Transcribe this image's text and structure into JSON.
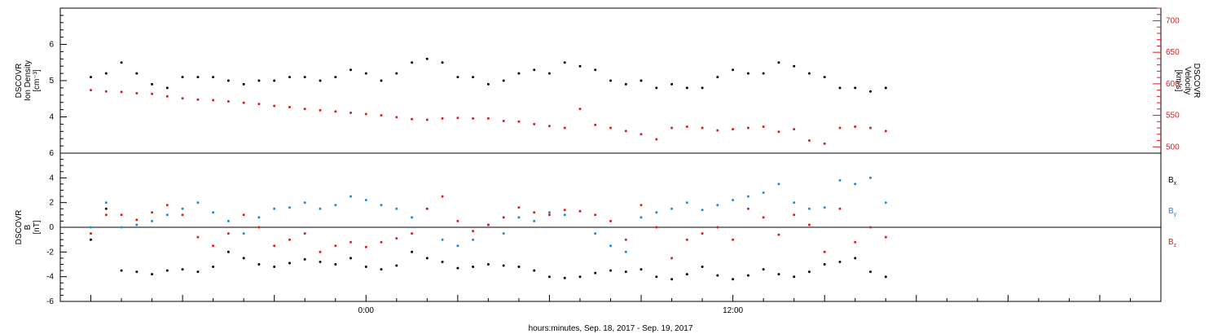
{
  "chart_data": [
    {
      "type": "scatter",
      "panel": "top",
      "ylabel_left": [
        "DSCOVR",
        "Ion Density",
        "[cm⁻³]"
      ],
      "ylabel_right": [
        "DSCOVR",
        "Velocity",
        "[km/s]"
      ],
      "ylim_left": [
        3,
        7
      ],
      "ylim_right": [
        490,
        720
      ],
      "yticks_left": [
        4,
        5,
        6
      ],
      "yticks_right": [
        500,
        550,
        600,
        650,
        700
      ],
      "grid": false,
      "series": [
        {
          "name": "Ion Density",
          "axis": "left",
          "color": "#000000",
          "x": [
            -9.0,
            -8.5,
            -8.0,
            -7.5,
            -7.0,
            -6.5,
            -6.0,
            -5.5,
            -5.0,
            -4.5,
            -4.0,
            -3.5,
            -3.0,
            -2.5,
            -2.0,
            -1.5,
            -1.0,
            -0.5,
            0.0,
            0.5,
            1.0,
            1.5,
            2.0,
            2.5,
            3.0,
            3.5,
            4.0,
            4.5,
            5.0,
            5.5,
            6.0,
            6.5,
            7.0,
            7.5,
            8.0,
            8.5,
            9.0,
            9.5,
            10.0,
            10.5,
            11.0,
            11.5,
            12.0,
            12.5,
            13.0,
            13.5,
            14.0,
            14.5,
            15.0,
            15.5,
            16.0,
            16.5,
            17.0
          ],
          "values": [
            5.1,
            5.2,
            5.5,
            5.2,
            4.9,
            4.8,
            5.1,
            5.1,
            5.1,
            5.0,
            4.9,
            5.0,
            5.0,
            5.1,
            5.1,
            5.0,
            5.1,
            5.3,
            5.2,
            5.0,
            5.2,
            5.5,
            5.6,
            5.5,
            5.1,
            5.1,
            4.9,
            5.0,
            5.2,
            5.3,
            5.2,
            5.5,
            5.4,
            5.3,
            5.0,
            4.9,
            5.0,
            4.8,
            4.9,
            4.8,
            4.8,
            5.1,
            5.3,
            5.2,
            5.2,
            5.5,
            5.4,
            5.2,
            5.1,
            4.8,
            4.8,
            4.7,
            4.8
          ]
        },
        {
          "name": "Velocity",
          "axis": "right",
          "color": "#e31a1c",
          "x": [
            -9.0,
            -8.5,
            -8.0,
            -7.5,
            -7.0,
            -6.5,
            -6.0,
            -5.5,
            -5.0,
            -4.5,
            -4.0,
            -3.5,
            -3.0,
            -2.5,
            -2.0,
            -1.5,
            -1.0,
            -0.5,
            0.0,
            0.5,
            1.0,
            1.5,
            2.0,
            2.5,
            3.0,
            3.5,
            4.0,
            4.5,
            5.0,
            5.5,
            6.0,
            6.5,
            7.0,
            7.5,
            8.0,
            8.5,
            9.0,
            9.5,
            10.0,
            10.5,
            11.0,
            11.5,
            12.0,
            12.5,
            13.0,
            13.5,
            14.0,
            14.5,
            15.0,
            15.5,
            16.0,
            16.5,
            17.0
          ],
          "values": [
            590,
            588,
            587,
            585,
            584,
            580,
            577,
            575,
            574,
            572,
            570,
            568,
            565,
            563,
            560,
            558,
            556,
            554,
            552,
            550,
            547,
            544,
            543,
            545,
            546,
            545,
            545,
            541,
            540,
            536,
            533,
            530,
            560,
            535,
            530,
            525,
            520,
            512,
            530,
            532,
            530,
            526,
            528,
            530,
            532,
            524,
            528,
            510,
            505,
            530,
            532,
            530,
            525
          ]
        }
      ]
    },
    {
      "type": "scatter",
      "panel": "bottom",
      "ylabel_left": [
        "DSCOVR",
        "B",
        "[nT]"
      ],
      "ylim": [
        -6,
        6
      ],
      "yticks": [
        -6,
        -4,
        -2,
        0,
        2,
        4,
        6
      ],
      "xlabel": "hours:minutes, Sep. 18, 2017 - Sep. 19, 2017",
      "xlim": [
        -10,
        26
      ],
      "xtick_labels": [
        {
          "x": 0,
          "label": "0:00"
        },
        {
          "x": 12,
          "label": "12:00"
        }
      ],
      "legend_placement": "right",
      "series": [
        {
          "name": "Bx",
          "label_main": "B",
          "label_sub": "x",
          "color": "#000000",
          "x": [
            -9.0,
            -8.5,
            -8.0,
            -7.5,
            -7.0,
            -6.5,
            -6.0,
            -5.5,
            -5.0,
            -4.5,
            -4.0,
            -3.5,
            -3.0,
            -2.5,
            -2.0,
            -1.5,
            -1.0,
            -0.5,
            0.0,
            0.5,
            1.0,
            1.5,
            2.0,
            2.5,
            3.0,
            3.5,
            4.0,
            4.5,
            5.0,
            5.5,
            6.0,
            6.5,
            7.0,
            7.5,
            8.0,
            8.5,
            9.0,
            9.5,
            10.0,
            10.5,
            11.0,
            11.5,
            12.0,
            12.5,
            13.0,
            13.5,
            14.0,
            14.5,
            15.0,
            15.5,
            16.0,
            16.5,
            17.0
          ],
          "values": [
            -1.0,
            1.5,
            -3.5,
            -3.6,
            -3.8,
            -3.5,
            -3.4,
            -3.6,
            -3.2,
            -2.0,
            -2.5,
            -3.0,
            -3.2,
            -2.9,
            -2.6,
            -2.8,
            -3.0,
            -2.5,
            -3.2,
            -3.4,
            -3.1,
            -2.0,
            -2.5,
            -2.8,
            -3.3,
            -3.2,
            -3.0,
            -3.1,
            -3.2,
            -3.5,
            -4.0,
            -4.1,
            -4.0,
            -3.7,
            -3.5,
            -3.6,
            -3.4,
            -4.0,
            -4.2,
            -3.8,
            -3.2,
            -3.9,
            -4.2,
            -3.9,
            -3.4,
            -3.8,
            -4.0,
            -3.6,
            -3.0,
            -2.8,
            -2.5,
            -3.6,
            -4.0
          ]
        },
        {
          "name": "By",
          "label_main": "B",
          "label_sub": "y",
          "color": "#1e88e5",
          "x": [
            -9.0,
            -8.5,
            -8.0,
            -7.5,
            -7.0,
            -6.5,
            -6.0,
            -5.5,
            -5.0,
            -4.5,
            -4.0,
            -3.5,
            -3.0,
            -2.5,
            -2.0,
            -1.5,
            -1.0,
            -0.5,
            0.0,
            0.5,
            1.0,
            1.5,
            2.0,
            2.5,
            3.0,
            3.5,
            4.0,
            4.5,
            5.0,
            5.5,
            6.0,
            6.5,
            7.0,
            7.5,
            8.0,
            8.5,
            9.0,
            9.5,
            10.0,
            10.5,
            11.0,
            11.5,
            12.0,
            12.5,
            13.0,
            13.5,
            14.0,
            14.5,
            15.0,
            15.5,
            16.0,
            16.5,
            17.0
          ],
          "values": [
            0.0,
            2.0,
            0.0,
            0.2,
            0.5,
            1.0,
            1.5,
            2.0,
            1.2,
            0.5,
            -0.5,
            0.8,
            1.5,
            1.6,
            2.0,
            1.5,
            1.8,
            2.5,
            2.2,
            1.8,
            1.5,
            0.8,
            1.5,
            -1.0,
            -1.5,
            -1.0,
            0.2,
            -0.5,
            0.8,
            0.5,
            1.2,
            1.0,
            1.3,
            -0.5,
            -1.5,
            -2.0,
            0.8,
            1.2,
            1.5,
            2.0,
            1.4,
            1.8,
            2.2,
            2.5,
            2.8,
            3.5,
            2.0,
            1.5,
            1.6,
            3.8,
            3.5,
            4.0,
            2.0
          ]
        },
        {
          "name": "Bz",
          "label_main": "B",
          "label_sub": "z",
          "color": "#e31a1c",
          "x": [
            -9.0,
            -8.5,
            -8.0,
            -7.5,
            -7.0,
            -6.5,
            -6.0,
            -5.5,
            -5.0,
            -4.5,
            -4.0,
            -3.5,
            -3.0,
            -2.5,
            -2.0,
            -1.5,
            -1.0,
            -0.5,
            0.0,
            0.5,
            1.0,
            1.5,
            2.0,
            2.5,
            3.0,
            3.5,
            4.0,
            4.5,
            5.0,
            5.5,
            6.0,
            6.5,
            7.0,
            7.5,
            8.0,
            8.5,
            9.0,
            9.5,
            10.0,
            10.5,
            11.0,
            11.5,
            12.0,
            12.5,
            13.0,
            13.5,
            14.0,
            14.5,
            15.0,
            15.5,
            16.0,
            16.5,
            17.0
          ],
          "values": [
            -0.5,
            1.0,
            1.0,
            0.6,
            1.2,
            1.8,
            1.0,
            -0.8,
            -1.5,
            -0.5,
            1.0,
            0.0,
            -1.5,
            -1.0,
            -0.5,
            -2.0,
            -1.5,
            -1.2,
            -1.6,
            -1.2,
            -0.9,
            -0.5,
            1.5,
            2.5,
            0.5,
            -0.3,
            0.2,
            0.8,
            1.6,
            1.2,
            1.0,
            1.4,
            1.3,
            1.0,
            0.5,
            -1.0,
            1.8,
            0.0,
            -2.5,
            -1.0,
            -0.5,
            0.0,
            -1.0,
            1.5,
            0.8,
            -0.6,
            1.0,
            0.2,
            -2.0,
            1.5,
            -1.2,
            0.0,
            -0.8
          ]
        }
      ]
    }
  ]
}
